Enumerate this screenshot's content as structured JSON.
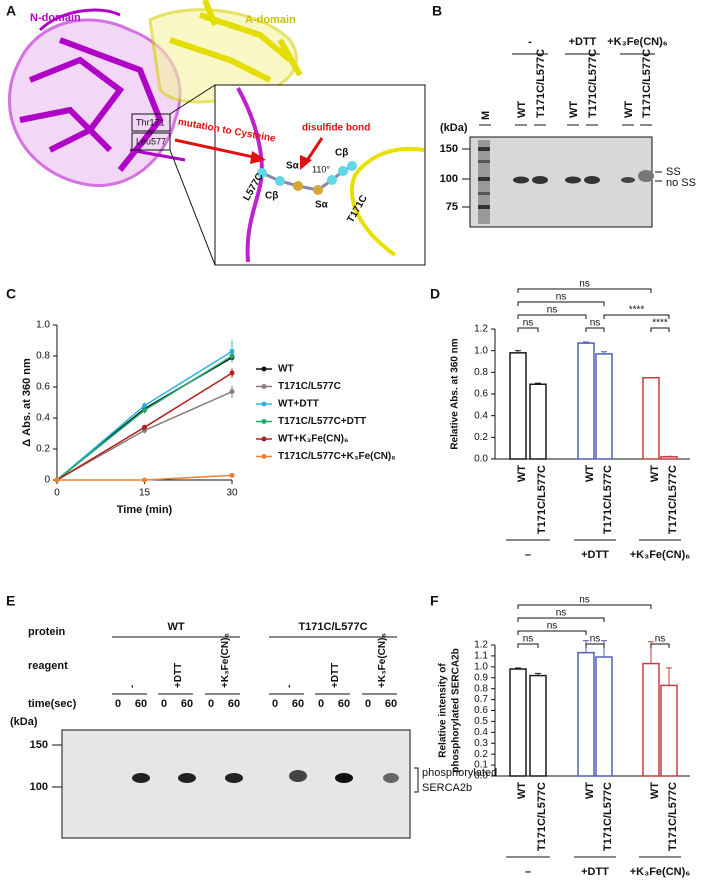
{
  "figure": {
    "panel_a": {
      "letter": "A",
      "n_domain": "N-domain",
      "a_domain": "A-domain",
      "thr": "Thr171",
      "leu": "Leu577",
      "mutation": "mutation to Cysteine",
      "disulfide": "disulfide bond",
      "l577c": "L577C",
      "t171c": "T171C",
      "cb_left": "Cβ",
      "sa_left": "Sα",
      "angle": "110°",
      "cb_right": "Cβ",
      "sa_right": "Sα"
    },
    "panel_b": {
      "letter": "B",
      "marker": "M",
      "conditions": [
        "-",
        "+DTT",
        "+K₃Fe(CN)₆"
      ],
      "lanes": [
        "WT",
        "T171C/L577C",
        "WT",
        "T171C/L577C",
        "WT",
        "T171C/L577C"
      ],
      "unit": "(kDa)",
      "markers": [
        150,
        100,
        75
      ],
      "bands": [
        "SS",
        "no SS"
      ]
    },
    "panel_e": {
      "letter": "E",
      "protein": "protein",
      "proteins": [
        "WT",
        "T171C/L577C"
      ],
      "reagent": "reagent",
      "reagents": [
        "-",
        "+DTT",
        "+K₃Fe(CN)₆",
        "-",
        "+DTT",
        "+K₃Fe(CN)₆"
      ],
      "time": "time(sec)",
      "times": [
        0,
        60,
        0,
        60,
        0,
        60,
        0,
        60,
        0,
        60,
        0,
        60
      ],
      "unit": "(kDa)",
      "markers": [
        150,
        100
      ],
      "band_label": [
        "phosphorylated",
        "SERCA2b"
      ]
    }
  },
  "chart_data": [
    {
      "type": "line",
      "panel": "C",
      "xlabel": "Time (min)",
      "ylabel": "Δ Abs. at 360 nm",
      "x": [
        0,
        15,
        30
      ],
      "xlim": [
        0,
        30
      ],
      "xticks": [
        0,
        15,
        30
      ],
      "ylim": [
        0,
        1
      ],
      "yticks": [
        0,
        0.2,
        0.4,
        0.6,
        0.8,
        {
          "value": 1,
          "label": "1.0"
        }
      ],
      "series": [
        {
          "name": "WT",
          "color": "#111111",
          "values": [
            0,
            0.46,
            0.79
          ],
          "errors": [
            0,
            0.02,
            0.03
          ]
        },
        {
          "name": "T171C/L577C",
          "color": "#8c7b7b",
          "values": [
            0,
            0.32,
            0.57
          ],
          "errors": [
            0,
            0.02,
            0.04
          ]
        },
        {
          "name": "WT+DTT",
          "color": "#2ab4e6",
          "values": [
            0,
            0.48,
            0.83
          ],
          "errors": [
            0,
            0.02,
            0.07
          ]
        },
        {
          "name": "T171C/L577C+DTT",
          "color": "#1fa866",
          "values": [
            0,
            0.45,
            0.8
          ],
          "errors": [
            0,
            0.02,
            0.03
          ]
        },
        {
          "name": "WT+K₃Fe(CN)₆",
          "color": "#b0201f",
          "values": [
            0,
            0.34,
            0.69
          ],
          "errors": [
            0,
            0.01,
            0.03
          ]
        },
        {
          "name": "T171C/L577C+K₃Fe(CN)₆",
          "color": "#f08030",
          "values": [
            0,
            0,
            0.03
          ],
          "errors": [
            0,
            0,
            0.005
          ]
        }
      ]
    },
    {
      "type": "bar",
      "panel": "D",
      "ylabel": "Relative Abs. at 360 nm",
      "ylim": [
        0,
        1.2
      ],
      "yticks": [
        {
          "value": 0,
          "label": "0.0"
        },
        0.2,
        0.4,
        0.6,
        0.8,
        {
          "value": 1,
          "label": "1.0"
        },
        1.2
      ],
      "categories": [
        "WT",
        "T171C/L577C",
        "WT",
        "T171C/L577C",
        "WT",
        "T171C/L577C"
      ],
      "groups": [
        "–",
        "+DTT",
        "+K₃Fe(CN)₆"
      ],
      "colors": [
        "#1a1a1a",
        "#5060b8",
        "#c04040"
      ],
      "values": [
        0.98,
        0.69,
        1.07,
        0.97,
        0.75,
        0.02
      ],
      "errors": [
        0.02,
        0.01,
        0.01,
        0.02,
        0,
        0.005
      ],
      "annotations": [
        "ns",
        "ns",
        "ns",
        "****",
        "ns",
        "ns",
        "****"
      ]
    },
    {
      "type": "bar",
      "panel": "F",
      "ylabel": [
        "Relative intensity of",
        "phosphorylated SERCA2b"
      ],
      "ylim": [
        0,
        1.2
      ],
      "yticks": [
        {
          "value": 0,
          "label": "0.0"
        },
        0.1,
        0.2,
        0.3,
        0.4,
        0.5,
        0.6,
        0.7,
        0.8,
        0.9,
        {
          "value": 1,
          "label": "1.0"
        },
        1.1,
        1.2
      ],
      "categories": [
        "WT",
        "T171C/L577C",
        "WT",
        "T171C/L577C",
        "WT",
        "T171C/L577C"
      ],
      "groups": [
        "–",
        "+DTT",
        "+K₃Fe(CN)₆"
      ],
      "colors": [
        "#1a1a1a",
        "#5060b8",
        "#c04040"
      ],
      "values": [
        0.98,
        0.92,
        1.13,
        1.09,
        1.03,
        0.83
      ],
      "errors": [
        0.01,
        0.02,
        0.11,
        0.15,
        0.2,
        0.16
      ],
      "annotations": [
        "ns",
        "ns",
        "ns",
        "ns",
        "ns",
        "ns"
      ]
    }
  ]
}
